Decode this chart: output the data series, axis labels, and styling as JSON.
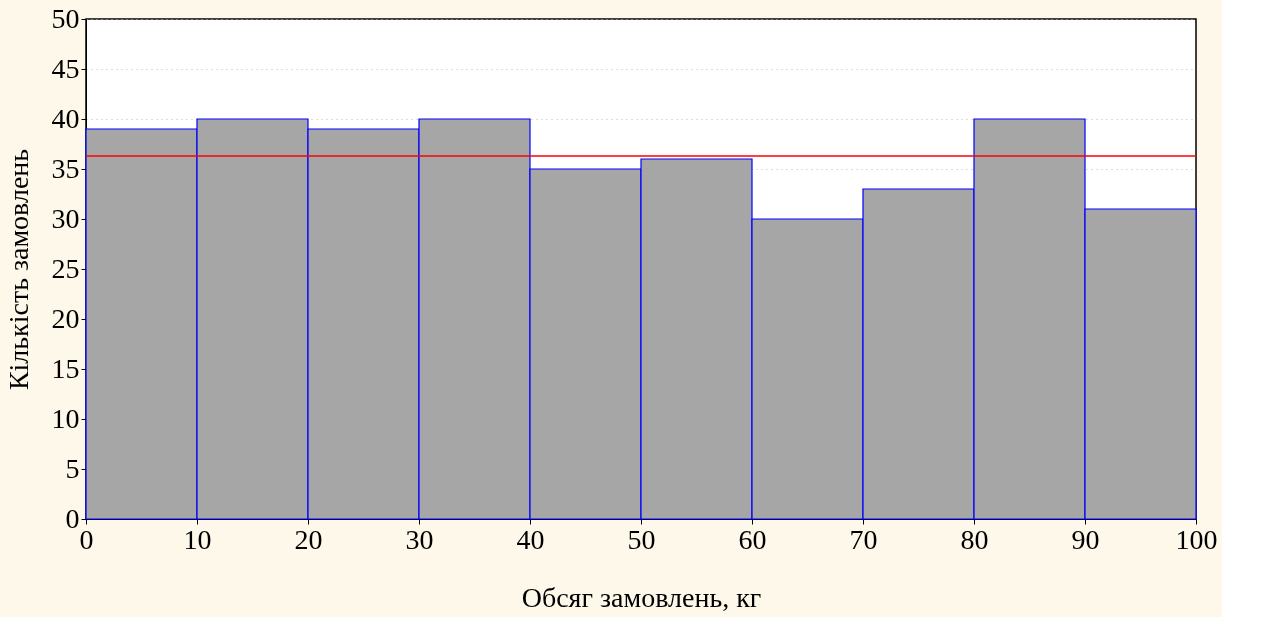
{
  "chart_data": {
    "type": "histogram",
    "xlabel": "Обсяг замовлень, кг",
    "ylabel": "Кількість замовлень",
    "bins": [
      0,
      10,
      20,
      30,
      40,
      50,
      60,
      70,
      80,
      90,
      100
    ],
    "values": [
      39,
      40,
      39,
      40,
      35,
      36,
      30,
      33,
      40,
      31
    ],
    "color": "#a6a6a6",
    "xlim": [
      0,
      100
    ],
    "xticks": [
      0,
      10,
      20,
      30,
      40,
      50,
      60,
      70,
      80,
      90,
      100
    ],
    "ylim": [
      0,
      50
    ],
    "yticks": [
      0,
      5,
      10,
      15,
      20,
      25,
      30,
      35,
      40,
      45,
      50
    ],
    "grid": "y",
    "ref_lines": [
      {
        "axis": "y",
        "value": 36.3,
        "color": "#ff0000"
      }
    ]
  }
}
